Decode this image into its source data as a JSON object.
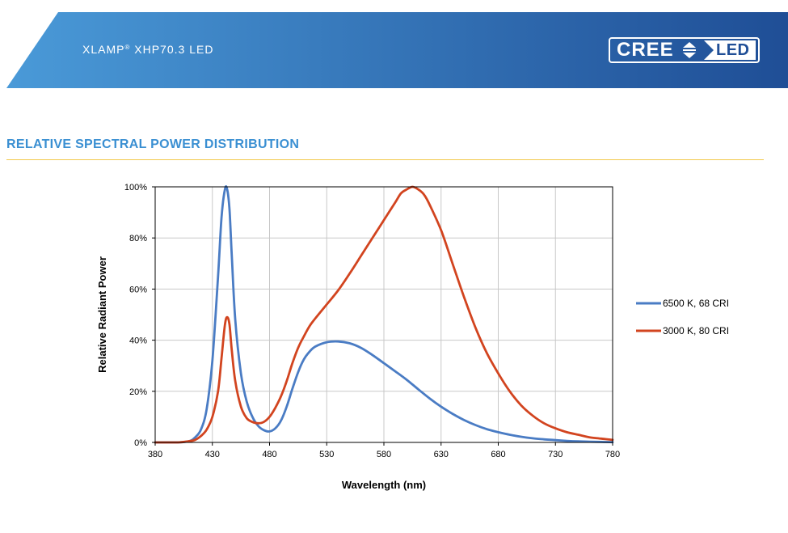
{
  "header": {
    "product_name": "XLAMP",
    "registered_mark": "®",
    "product_model": "XHP70.3 LED",
    "logo_left": "CREE",
    "logo_right": "LED",
    "band_color_left": "#4a9ad8",
    "band_color_right": "#1f4e96"
  },
  "section": {
    "title": "RELATIVE SPECTRAL POWER DISTRIBUTION",
    "title_color": "#3a8fd2",
    "rule_color": "#f2c94c"
  },
  "chart_data": {
    "type": "line",
    "title": "",
    "xlabel": "Wavelength (nm)",
    "ylabel": "Relative Radiant Power",
    "xlim": [
      380,
      780
    ],
    "ylim": [
      0,
      100
    ],
    "xticks": [
      380,
      430,
      480,
      530,
      580,
      630,
      680,
      730,
      780
    ],
    "xtick_labels": [
      "380",
      "430",
      "480",
      "530",
      "580",
      "630",
      "680",
      "730",
      "780"
    ],
    "yticks": [
      0,
      20,
      40,
      60,
      80,
      100
    ],
    "ytick_labels": [
      "0%",
      "20%",
      "40%",
      "60%",
      "80%",
      "100%"
    ],
    "grid": true,
    "legend_position": "right",
    "series": [
      {
        "name": "6500 K, 68 CRI",
        "color": "#4a7cc4",
        "x": [
          380,
          400,
          410,
          415,
          420,
          425,
          430,
          435,
          438,
          441,
          443,
          445,
          447,
          450,
          455,
          460,
          465,
          470,
          475,
          480,
          485,
          490,
          495,
          500,
          505,
          510,
          515,
          520,
          530,
          540,
          550,
          560,
          570,
          580,
          590,
          600,
          610,
          620,
          630,
          640,
          650,
          660,
          670,
          680,
          690,
          700,
          710,
          720,
          730,
          740,
          750,
          760,
          770,
          780
        ],
        "y": [
          0,
          0,
          0.5,
          2,
          5,
          13,
          32,
          65,
          88,
          99,
          99,
          91,
          73,
          48,
          27,
          16,
          10,
          6.5,
          4.8,
          4.3,
          5.5,
          8.5,
          14,
          21,
          27.5,
          32.5,
          35.5,
          37.5,
          39.2,
          39.5,
          38.8,
          37,
          34.2,
          31,
          27.8,
          24.5,
          20.8,
          17.2,
          14,
          11.2,
          8.8,
          6.8,
          5.2,
          4,
          3,
          2.2,
          1.6,
          1.2,
          0.9,
          0.6,
          0.4,
          0.3,
          0.2,
          0.1
        ]
      },
      {
        "name": "3000 K, 80 CRI",
        "color": "#d2441f",
        "x": [
          380,
          400,
          410,
          415,
          420,
          425,
          430,
          435,
          438,
          441,
          443,
          445,
          447,
          450,
          455,
          460,
          465,
          470,
          475,
          480,
          485,
          490,
          495,
          500,
          505,
          510,
          515,
          520,
          530,
          540,
          550,
          560,
          570,
          580,
          590,
          595,
          600,
          605,
          610,
          615,
          620,
          630,
          640,
          650,
          660,
          670,
          680,
          690,
          700,
          710,
          720,
          730,
          740,
          750,
          760,
          770,
          780
        ],
        "y": [
          0,
          0,
          0.5,
          1,
          2.5,
          5,
          10,
          20,
          33,
          46,
          49,
          46,
          36,
          24,
          14,
          9.5,
          8,
          7.5,
          8,
          10,
          13.5,
          18,
          24,
          31,
          37,
          41.5,
          45.5,
          48.5,
          54,
          59.5,
          66,
          73,
          80,
          87,
          94,
          97.5,
          99,
          100,
          99,
          97,
          93,
          83,
          70,
          57,
          45,
          35,
          27,
          20,
          14.5,
          10.5,
          7.5,
          5.5,
          4,
          3,
          2,
          1.5,
          1
        ]
      }
    ]
  }
}
